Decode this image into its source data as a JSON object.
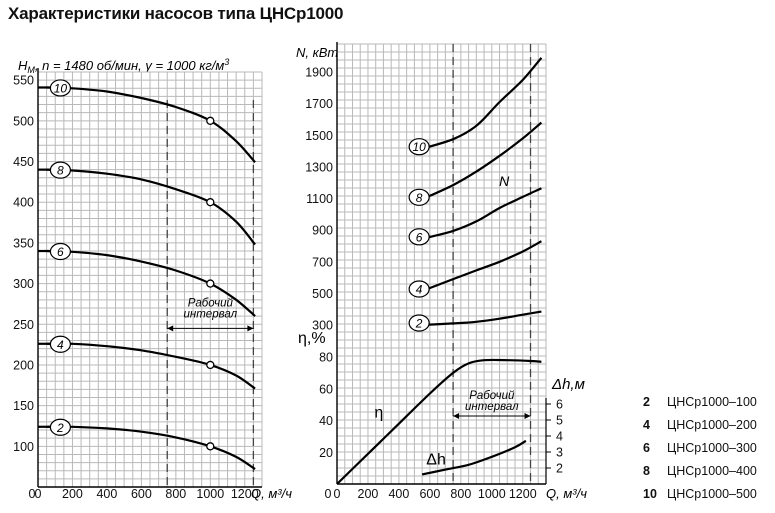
{
  "title": "Характеристики насосов типа ЦНСр1000",
  "chart_data": [
    {
      "type": "line",
      "panel": "head",
      "ylabel": "H_M, n = 1480 об/мин, γ = 1000 кг/м³",
      "ylabel_parts": {
        "symbol": "H",
        "sub": "М",
        "rest": ", n = 1480 об/мин, γ = 1000 кг/м",
        "sup": "3"
      },
      "xlabel": "Q, м³/ч",
      "x_ticks": [
        "0",
        "200",
        "400",
        "600",
        "800",
        "1000",
        "1200"
      ],
      "y_ticks": [
        "100",
        "150",
        "200",
        "250",
        "300",
        "350",
        "400",
        "450",
        "500",
        "550"
      ],
      "xlim": [
        0,
        1300
      ],
      "ylim": [
        50,
        560
      ],
      "annotation": [
        "Рабочий",
        "интервал"
      ],
      "work_interval": [
        750,
        1250
      ],
      "series": [
        {
          "name": "10",
          "x": [
            50,
            200,
            400,
            600,
            800,
            1000,
            1150,
            1260
          ],
          "y": [
            541,
            540,
            536,
            528,
            517,
            500,
            475,
            449
          ]
        },
        {
          "name": "8",
          "x": [
            50,
            200,
            400,
            600,
            800,
            1000,
            1150,
            1260
          ],
          "y": [
            440,
            439,
            435,
            428,
            416,
            400,
            376,
            348
          ]
        },
        {
          "name": "6",
          "x": [
            50,
            200,
            400,
            600,
            800,
            1000,
            1150,
            1260
          ],
          "y": [
            340,
            339,
            335,
            327,
            316,
            300,
            280,
            260
          ]
        },
        {
          "name": "4",
          "x": [
            50,
            200,
            400,
            600,
            800,
            1000,
            1150,
            1260
          ],
          "y": [
            226,
            226,
            223,
            218,
            210,
            200,
            187,
            171
          ]
        },
        {
          "name": "2",
          "x": [
            50,
            200,
            400,
            600,
            800,
            1000,
            1150,
            1260
          ],
          "y": [
            124,
            124,
            122,
            118,
            111,
            100,
            87,
            72
          ]
        }
      ],
      "markers": [
        {
          "x": 1000,
          "y": 500
        },
        {
          "x": 1000,
          "y": 400
        },
        {
          "x": 1000,
          "y": 300
        },
        {
          "x": 1000,
          "y": 200
        },
        {
          "x": 1000,
          "y": 100
        }
      ]
    },
    {
      "type": "line",
      "panel": "power-efficiency",
      "ylabel": "N, кВт",
      "ylabel2": "η,%",
      "ylabel3": "Δh,м",
      "xlabel": "Q, м³/ч",
      "x_ticks": [
        "0",
        "200",
        "400",
        "600",
        "800",
        "1000",
        "1200"
      ],
      "n_ticks": [
        "300",
        "500",
        "700",
        "900",
        "1100",
        "1300",
        "1500",
        "1700",
        "1900"
      ],
      "eta_ticks": [
        "20",
        "40",
        "60",
        "80"
      ],
      "dh_ticks": [
        "2",
        "3",
        "4",
        "5",
        "6"
      ],
      "xlim": [
        0,
        1350
      ],
      "power_series": [
        {
          "name": "10",
          "x": [
            550,
            750,
            900,
            1050,
            1200,
            1320
          ],
          "y": [
            1415,
            1475,
            1560,
            1710,
            1850,
            1990
          ]
        },
        {
          "name": "8",
          "x": [
            550,
            750,
            900,
            1050,
            1200,
            1320
          ],
          "y": [
            1095,
            1185,
            1270,
            1370,
            1480,
            1580
          ]
        },
        {
          "name": "6",
          "x": [
            550,
            750,
            900,
            1050,
            1200,
            1320
          ],
          "y": [
            845,
            895,
            955,
            1040,
            1110,
            1165
          ]
        },
        {
          "name": "4",
          "x": [
            550,
            750,
            900,
            1050,
            1200,
            1320
          ],
          "y": [
            515,
            590,
            645,
            700,
            765,
            830
          ]
        },
        {
          "name": "2",
          "x": [
            550,
            750,
            900,
            1050,
            1200,
            1320
          ],
          "y": [
            300,
            310,
            320,
            340,
            365,
            385
          ]
        }
      ],
      "power_series_label": "N",
      "efficiency": {
        "name": "η",
        "x": [
          0,
          200,
          400,
          600,
          750,
          850,
          950,
          1100,
          1250,
          1320
        ],
        "y": [
          0,
          19,
          38,
          57,
          70,
          76,
          78,
          78,
          77.5,
          77
        ]
      },
      "npsh": {
        "name": "Δh",
        "x": [
          550,
          700,
          850,
          1000,
          1150,
          1220
        ],
        "y": [
          1.6,
          1.9,
          2.2,
          2.7,
          3.3,
          3.7
        ]
      },
      "annotation": [
        "Рабочий",
        "интервал"
      ],
      "work_interval": [
        750,
        1250
      ]
    }
  ],
  "legend": [
    {
      "num": "2",
      "text": "ЦНСр1000–100"
    },
    {
      "num": "4",
      "text": "ЦНСр1000–200"
    },
    {
      "num": "6",
      "text": "ЦНСр1000–300"
    },
    {
      "num": "8",
      "text": "ЦНСр1000–400"
    },
    {
      "num": "10",
      "text": "ЦНСр1000–500"
    }
  ]
}
